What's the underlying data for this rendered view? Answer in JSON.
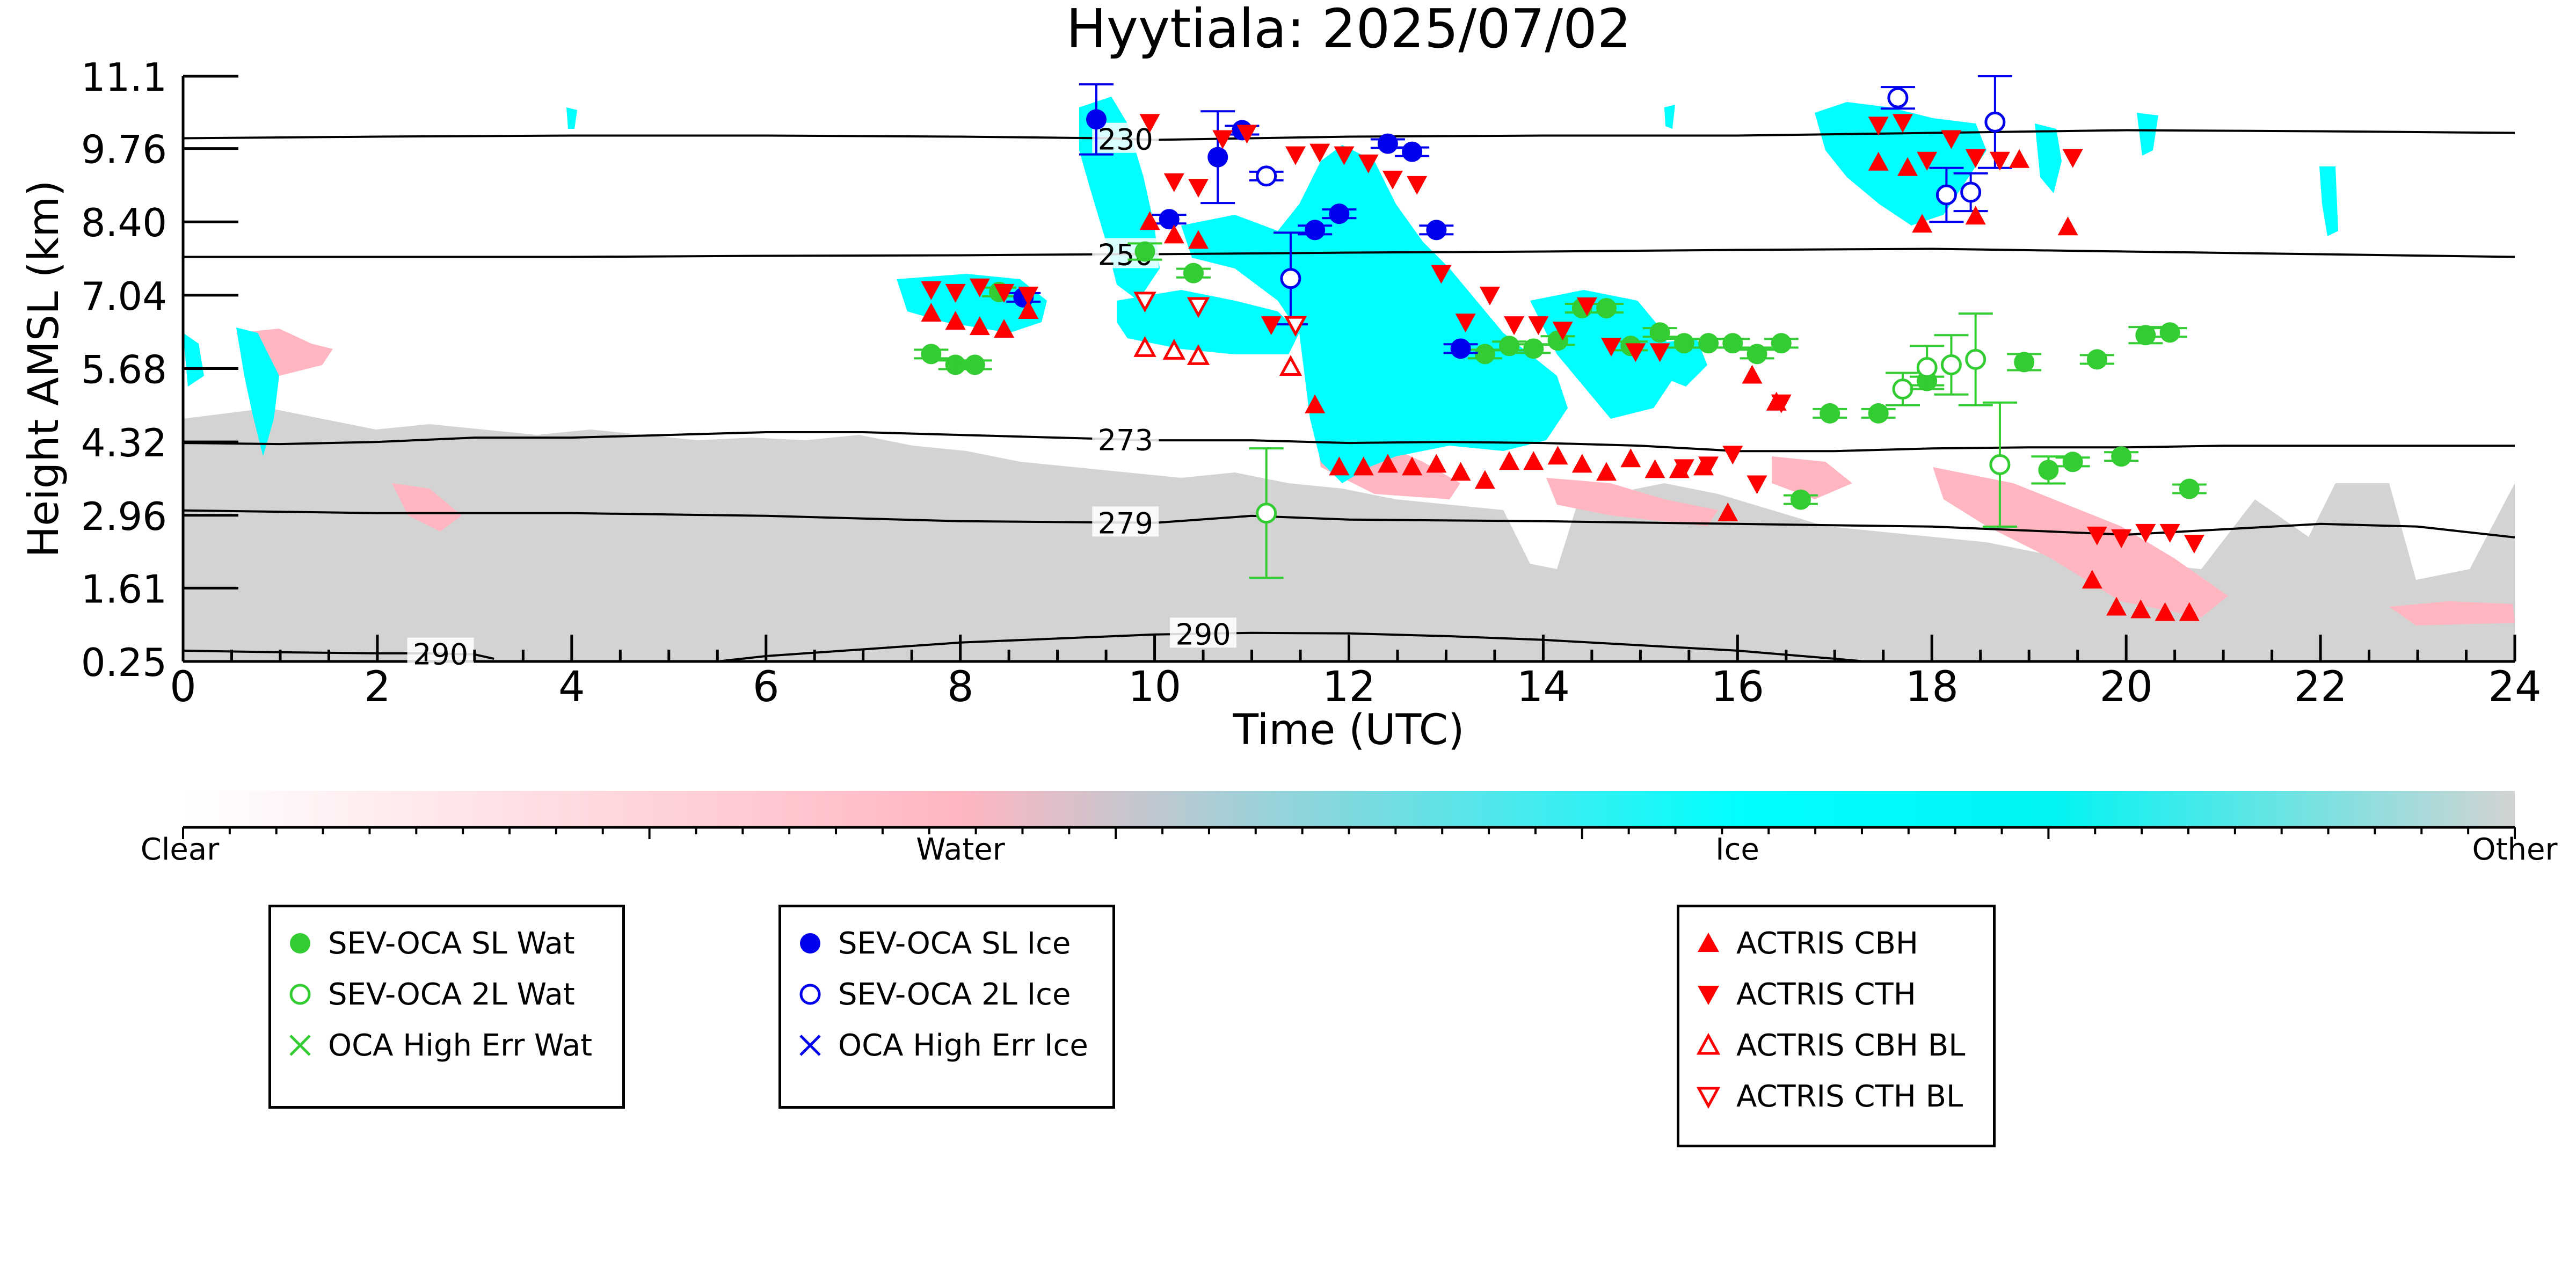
{
  "chart_data": {
    "type": "scatter",
    "title": "Hyytiala: 2025/07/02",
    "xlabel": "Time (UTC)",
    "ylabel": "Height AMSL (km)",
    "xlim": [
      0,
      24
    ],
    "ylim": [
      0.25,
      11.1
    ],
    "x_ticks": [
      "0",
      "2",
      "4",
      "6",
      "8",
      "10",
      "12",
      "14",
      "16",
      "18",
      "20",
      "22",
      "24"
    ],
    "y_ticks": [
      "0.25",
      "1.61",
      "2.96",
      "4.32",
      "5.68",
      "7.04",
      "8.40",
      "9.76",
      "11.1"
    ],
    "background": "cloud-type curtain (Clear / Water / Ice / Other) from ACTRIS profiling",
    "colorbar": {
      "labels": [
        "Clear",
        "Water",
        "Ice",
        "Other"
      ],
      "colors": [
        "#ffffff",
        "#ffb6c1",
        "#00ffff",
        "#d3d3d3"
      ]
    },
    "contours": [
      {
        "label": "230",
        "x": [
          0,
          2,
          4,
          6,
          8,
          9.5,
          10,
          12,
          14,
          16,
          18,
          20,
          22,
          24
        ],
        "y": [
          9.95,
          9.98,
          10.0,
          10.0,
          9.98,
          9.95,
          9.92,
          9.98,
          10.0,
          10.0,
          10.05,
          10.1,
          10.08,
          10.05
        ]
      },
      {
        "label": "250",
        "x": [
          0,
          2,
          4,
          6,
          8,
          9.5,
          10,
          12,
          14,
          16,
          18,
          20,
          22,
          24
        ],
        "y": [
          7.75,
          7.75,
          7.75,
          7.77,
          7.78,
          7.8,
          7.8,
          7.83,
          7.85,
          7.88,
          7.9,
          7.85,
          7.8,
          7.75
        ]
      },
      {
        "label": "273",
        "x": [
          0,
          1,
          2,
          3,
          4,
          5,
          6,
          7,
          8,
          9,
          10,
          11,
          12,
          13,
          14,
          15,
          16,
          17,
          18,
          19,
          20,
          21,
          22,
          23,
          24
        ],
        "y": [
          4.3,
          4.28,
          4.32,
          4.4,
          4.4,
          4.45,
          4.5,
          4.5,
          4.45,
          4.4,
          4.35,
          4.35,
          4.3,
          4.32,
          4.3,
          4.25,
          4.15,
          4.15,
          4.2,
          4.22,
          4.22,
          4.25,
          4.25,
          4.25,
          4.25
        ]
      },
      {
        "label": "279",
        "x": [
          0,
          2,
          4,
          6,
          8,
          10,
          11,
          12,
          14,
          16,
          18,
          20,
          21,
          22,
          23,
          24
        ],
        "y": [
          3.05,
          3.0,
          3.0,
          2.95,
          2.85,
          2.82,
          2.95,
          2.88,
          2.85,
          2.8,
          2.75,
          2.6,
          2.7,
          2.8,
          2.75,
          2.55
        ]
      },
      {
        "label": "290",
        "x": [
          0,
          1,
          2,
          2.5,
          3,
          3.2
        ],
        "y": [
          0.45,
          0.42,
          0.4,
          0.4,
          0.38,
          0.3
        ]
      },
      {
        "label": "290",
        "x": [
          5.5,
          6,
          8,
          10,
          11,
          12,
          13,
          14,
          15,
          16,
          17,
          17.5
        ],
        "y": [
          0.25,
          0.35,
          0.6,
          0.75,
          0.78,
          0.77,
          0.72,
          0.65,
          0.55,
          0.45,
          0.3,
          0.22
        ]
      }
    ],
    "series": [
      {
        "name": "SEV-OCA SL Wat",
        "marker": "filled-circle",
        "color": "#33cc33",
        "x": [
          7.7,
          7.95,
          8.15,
          8.4,
          9.9,
          10.4,
          13.4,
          13.65,
          13.9,
          14.15,
          14.4,
          14.65,
          14.9,
          15.2,
          15.45,
          15.7,
          15.95,
          16.2,
          16.45,
          16.65,
          16.95,
          17.45,
          17.95,
          18.95,
          19.2,
          19.45,
          19.7,
          19.95,
          20.2,
          20.45,
          20.65
        ],
        "y": [
          5.95,
          5.75,
          5.75,
          7.1,
          7.85,
          7.45,
          5.95,
          6.1,
          6.05,
          6.2,
          6.8,
          6.8,
          6.1,
          6.35,
          6.15,
          6.15,
          6.15,
          5.95,
          6.15,
          3.25,
          4.85,
          4.85,
          5.45,
          5.8,
          3.8,
          3.95,
          5.85,
          4.05,
          6.3,
          6.35,
          3.45
        ],
        "yerr": [
          0.08,
          0.08,
          0.08,
          0.08,
          0.15,
          0.08,
          0.08,
          0.08,
          0.08,
          0.08,
          0.08,
          0.08,
          0.08,
          0.08,
          0.08,
          0.08,
          0.08,
          0.08,
          0.08,
          0.08,
          0.08,
          0.08,
          0.08,
          0.15,
          0.25,
          0.08,
          0.08,
          0.08,
          0.15,
          0.08,
          0.08
        ]
      },
      {
        "name": "SEV-OCA 2L Wat",
        "marker": "open-circle",
        "color": "#33cc33",
        "x": [
          11.15,
          17.7,
          17.95,
          18.2,
          18.45,
          18.7
        ],
        "y": [
          3.0,
          5.3,
          5.7,
          5.75,
          5.85,
          3.9
        ],
        "yerr": [
          1.2,
          0.3,
          0.4,
          0.55,
          0.85,
          1.15
        ]
      },
      {
        "name": "SEV-OCA SL Ice",
        "marker": "filled-circle",
        "color": "#0000ee",
        "x": [
          8.65,
          9.4,
          10.15,
          10.65,
          10.9,
          11.65,
          11.9,
          12.4,
          12.65,
          12.9,
          13.15
        ],
        "y": [
          7.0,
          10.3,
          8.45,
          9.6,
          10.1,
          8.25,
          8.55,
          9.85,
          9.7,
          8.25,
          6.05
        ],
        "yerr": [
          0.08,
          0.65,
          0.08,
          0.85,
          0.08,
          0.08,
          0.08,
          0.08,
          0.08,
          0.08,
          0.08
        ]
      },
      {
        "name": "SEV-OCA 2L Ice",
        "marker": "open-circle",
        "color": "#0000ee",
        "x": [
          11.15,
          11.4,
          17.65,
          18.15,
          18.4,
          18.65
        ],
        "y": [
          9.25,
          7.35,
          10.7,
          8.9,
          8.95,
          10.25
        ],
        "yerr": [
          0.08,
          0.85,
          0.2,
          0.5,
          0.35,
          0.85
        ]
      },
      {
        "name": "ACTRIS CBH",
        "marker": "triangle-up",
        "color": "#ff0000",
        "x": [
          7.7,
          7.95,
          8.2,
          8.45,
          8.7,
          9.95,
          10.2,
          10.45,
          11.65,
          11.9,
          12.15,
          12.4,
          12.65,
          12.9,
          13.15,
          13.4,
          13.65,
          13.9,
          14.15,
          14.4,
          14.65,
          14.9,
          15.15,
          15.4,
          15.65,
          15.9,
          16.15,
          16.4,
          17.45,
          17.75,
          17.9,
          18.45,
          18.9,
          19.4,
          19.65,
          19.9,
          20.15,
          20.4,
          20.65
        ],
        "y": [
          6.7,
          6.55,
          6.45,
          6.4,
          6.75,
          8.4,
          8.15,
          8.05,
          5.0,
          3.85,
          3.85,
          3.9,
          3.85,
          3.9,
          3.75,
          3.6,
          3.95,
          3.95,
          4.05,
          3.9,
          3.75,
          4.0,
          3.8,
          3.8,
          3.85,
          3.0,
          5.55,
          5.05,
          9.5,
          9.4,
          8.35,
          8.5,
          9.55,
          8.3,
          1.75,
          1.25,
          1.2,
          1.15,
          1.15
        ]
      },
      {
        "name": "ACTRIS CTH",
        "marker": "triangle-down",
        "color": "#ff0000",
        "x": [
          7.7,
          7.95,
          8.2,
          8.45,
          8.7,
          9.95,
          10.2,
          10.45,
          10.7,
          10.95,
          11.2,
          11.45,
          11.7,
          11.95,
          12.2,
          12.45,
          12.7,
          12.95,
          13.2,
          13.45,
          13.7,
          13.95,
          14.2,
          14.45,
          14.7,
          14.95,
          15.2,
          15.45,
          15.7,
          15.95,
          16.2,
          16.45,
          17.45,
          17.7,
          17.95,
          18.2,
          18.45,
          18.7,
          19.45,
          19.7,
          19.95,
          20.2,
          20.45,
          20.7
        ],
        "y": [
          7.15,
          7.1,
          7.2,
          7.1,
          7.05,
          10.25,
          9.15,
          9.05,
          9.95,
          10.05,
          6.5,
          9.65,
          9.7,
          9.65,
          9.5,
          9.2,
          9.1,
          7.45,
          6.55,
          7.05,
          6.5,
          6.5,
          6.4,
          6.85,
          6.1,
          6.0,
          6.0,
          3.85,
          3.9,
          4.1,
          3.55,
          5.05,
          10.2,
          10.25,
          9.55,
          9.95,
          9.6,
          9.55,
          9.6,
          2.6,
          2.55,
          2.65,
          2.65,
          2.45
        ]
      },
      {
        "name": "ACTRIS CBH BL",
        "marker": "open-triangle-up",
        "color": "#ff0000",
        "x": [
          9.9,
          10.2,
          10.45,
          11.4
        ],
        "y": [
          6.05,
          6.0,
          5.9,
          5.7
        ]
      },
      {
        "name": "ACTRIS CTH BL",
        "marker": "open-triangle-down",
        "color": "#ff0000",
        "x": [
          9.9,
          10.45,
          11.45
        ],
        "y": [
          6.95,
          6.85,
          6.5
        ]
      }
    ],
    "legends": [
      {
        "entries": [
          {
            "label": "SEV-OCA SL Wat",
            "marker": "filled-circle",
            "color": "#33cc33"
          },
          {
            "label": "SEV-OCA 2L Wat",
            "marker": "open-circle",
            "color": "#33cc33"
          },
          {
            "label": "OCA High Err Wat",
            "marker": "x",
            "color": "#33cc33"
          }
        ]
      },
      {
        "entries": [
          {
            "label": "SEV-OCA SL Ice",
            "marker": "filled-circle",
            "color": "#0000ee"
          },
          {
            "label": "SEV-OCA 2L Ice",
            "marker": "open-circle",
            "color": "#0000ee"
          },
          {
            "label": "OCA High Err Ice",
            "marker": "x",
            "color": "#0000ee"
          }
        ]
      },
      {
        "entries": [
          {
            "label": "ACTRIS CBH",
            "marker": "triangle-up",
            "color": "#ff0000"
          },
          {
            "label": "ACTRIS CTH",
            "marker": "triangle-down",
            "color": "#ff0000"
          },
          {
            "label": "ACTRIS CBH BL",
            "marker": "open-triangle-up",
            "color": "#ff0000"
          },
          {
            "label": "ACTRIS CTH BL",
            "marker": "open-triangle-down",
            "color": "#ff0000"
          }
        ]
      }
    ],
    "grid": false
  }
}
